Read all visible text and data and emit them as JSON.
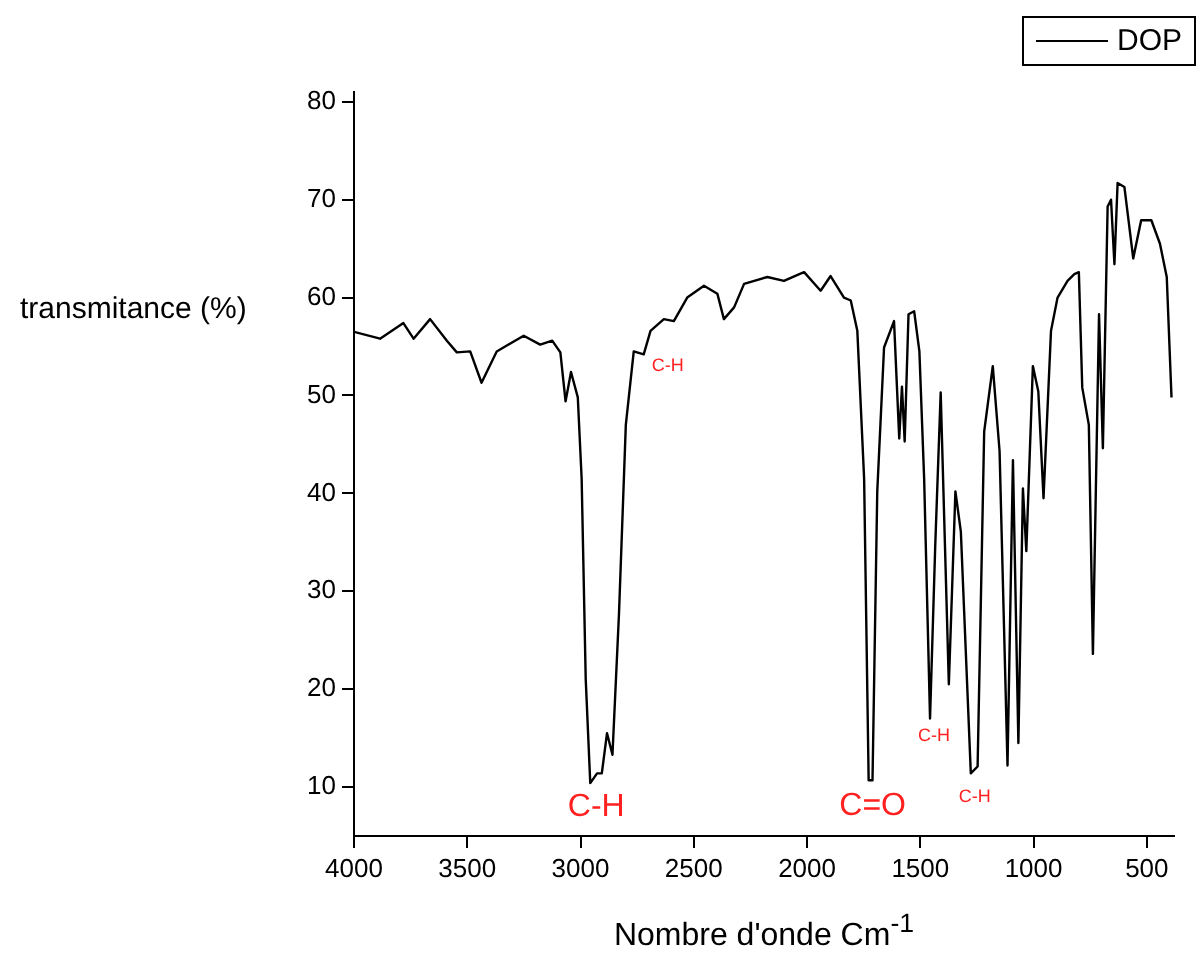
{
  "chart_data": {
    "type": "line",
    "xlabel": "Nombre d'onde Cm$^{-1}$",
    "ylabel": "transmitance (%)",
    "xlim": [
      4000,
      380
    ],
    "xticks": [
      4000,
      3500,
      3000,
      2500,
      2000,
      1500,
      1000,
      500
    ],
    "ylim": [
      5,
      81
    ],
    "yticks": [
      10,
      20,
      30,
      40,
      50,
      60,
      70,
      80
    ],
    "grid": false,
    "legend": "top right",
    "marker": "none",
    "line_style": "solid",
    "x": [
      4000,
      3885,
      3782,
      3737,
      3664,
      3590,
      3546,
      3487,
      3437,
      3370,
      3251,
      3178,
      3125,
      3089,
      3066,
      3042,
      3012,
      2995,
      2977,
      2957,
      2927,
      2906,
      2883,
      2859,
      2830,
      2800,
      2765,
      2721,
      2691,
      2632,
      2588,
      2529,
      2455,
      2396,
      2367,
      2322,
      2278,
      2175,
      2102,
      2034,
      2013,
      1940,
      1896,
      1837,
      1807,
      1778,
      1748,
      1728,
      1711,
      1690,
      1660,
      1616,
      1593,
      1581,
      1569,
      1552,
      1527,
      1504,
      1483,
      1457,
      1434,
      1410,
      1374,
      1345,
      1321,
      1277,
      1247,
      1218,
      1180,
      1150,
      1115,
      1091,
      1067,
      1047,
      1032,
      1003,
      979,
      956,
      923,
      894,
      850,
      820,
      800,
      785,
      756,
      738,
      711,
      694,
      673,
      658,
      643,
      629,
      599,
      560,
      525,
      480,
      442,
      412,
      391
    ],
    "series": [
      {
        "name": "DOP",
        "color": "#000000",
        "values": [
          56.5,
          55.8,
          57.4,
          55.8,
          57.8,
          55.6,
          54.4,
          54.5,
          51.3,
          54.5,
          56.1,
          55.2,
          55.6,
          54.4,
          49.4,
          52.4,
          49.8,
          41.5,
          21.0,
          10.4,
          11.4,
          11.4,
          15.5,
          13.3,
          27.8,
          47.0,
          54.5,
          54.2,
          56.6,
          57.8,
          57.6,
          60.0,
          61.2,
          60.4,
          57.8,
          59.0,
          61.4,
          62.1,
          61.7,
          62.4,
          62.6,
          60.7,
          62.2,
          60.0,
          59.7,
          56.6,
          41.5,
          10.7,
          10.7,
          40.2,
          54.9,
          57.6,
          45.6,
          50.9,
          45.3,
          58.3,
          58.6,
          54.5,
          41.5,
          17.0,
          34.7,
          50.3,
          20.5,
          40.2,
          36.1,
          11.4,
          12.1,
          46.3,
          53.0,
          44.3,
          12.2,
          43.4,
          14.5,
          40.5,
          34.1,
          53.0,
          50.4,
          39.5,
          56.6,
          60.0,
          61.7,
          62.4,
          62.6,
          50.8,
          47.0,
          23.6,
          58.3,
          44.6,
          69.3,
          70.0,
          63.4,
          71.7,
          71.3,
          64.0,
          67.9,
          67.9,
          65.5,
          62.1,
          49.8
        ]
      }
    ],
    "annotations": [
      {
        "text": "C-H",
        "x": 2957,
        "y": 10.4
      },
      {
        "text": "C-H",
        "x": 2721,
        "y": 54.2
      },
      {
        "text": "C=O",
        "x": 1728,
        "y": 10.7
      },
      {
        "text": "C-H",
        "x": 1457,
        "y": 17.0
      },
      {
        "text": "C-H",
        "x": 1277,
        "y": 11.4
      }
    ]
  }
}
